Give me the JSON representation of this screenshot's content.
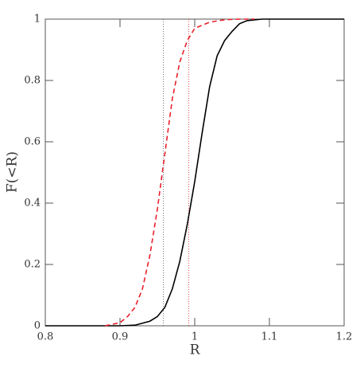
{
  "chart_data": {
    "type": "line",
    "xlabel": "R",
    "ylabel": "F(<R)",
    "xlim": [
      0.8,
      1.2
    ],
    "ylim": [
      0,
      1
    ],
    "xticks": [
      0.8,
      0.9,
      1,
      1.1,
      1.2
    ],
    "yticks": [
      0,
      0.2,
      0.4,
      0.6,
      0.8,
      1
    ],
    "series": [
      {
        "color": "#000000",
        "dash": "none",
        "x": [
          0.8,
          0.9,
          0.92,
          0.94,
          0.95,
          0.96,
          0.97,
          0.98,
          0.99,
          1.0,
          1.01,
          1.02,
          1.03,
          1.04,
          1.05,
          1.06,
          1.07,
          1.09,
          1.2
        ],
        "values": [
          0,
          0,
          0.002,
          0.015,
          0.03,
          0.06,
          0.12,
          0.21,
          0.33,
          0.47,
          0.63,
          0.78,
          0.88,
          0.93,
          0.96,
          0.985,
          0.995,
          1,
          1
        ]
      },
      {
        "color": "#e8202a",
        "dash": "6,4",
        "x": [
          0.88,
          0.9,
          0.91,
          0.92,
          0.93,
          0.94,
          0.95,
          0.96,
          0.97,
          0.98,
          0.99,
          1.0,
          1.02,
          1.04,
          1.06,
          1.08
        ],
        "values": [
          0,
          0.01,
          0.03,
          0.06,
          0.12,
          0.23,
          0.38,
          0.56,
          0.74,
          0.86,
          0.93,
          0.97,
          0.99,
          0.998,
          1,
          1
        ]
      }
    ],
    "vlines": [
      {
        "x": 0.958,
        "color": "#555555"
      },
      {
        "x": 0.992,
        "color": "#e8202a"
      }
    ]
  }
}
